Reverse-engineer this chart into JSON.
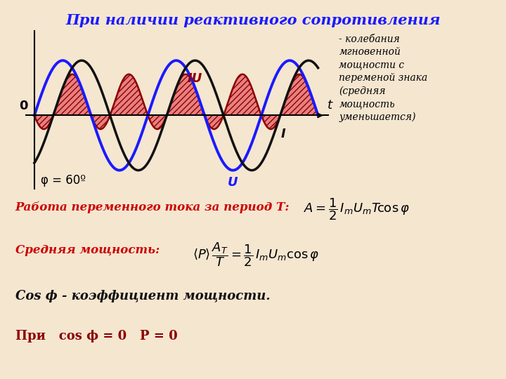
{
  "title": "При наличии реактивного сопротивления",
  "background_color": "#f5e6d0",
  "phi_deg": 60,
  "annotation_text": "- колебания\nмгновенной\nмощности с\nпеременой знака\n(средняя\nмощность\nуменьшается)",
  "label_U": "U",
  "label_I": "I",
  "label_IU": "IU",
  "label_phi": "φ = 60º",
  "label_t": "t",
  "label_0": "0",
  "formula1_label": "Работа переменного тока за период Т:",
  "formula1_math": "$A = \\dfrac{1}{2}\\,I_m U_m T\\cos\\varphi$",
  "formula2_label": "Средняя мощность:",
  "formula2_math": "$\\langle P \\rangle\\dfrac{A_T}{T} = \\dfrac{1}{2}\\,I_m U_m \\cos\\varphi$",
  "formula3": "Cos ϕ - коэффициент мощности.",
  "formula4": "При   cos ϕ = 0   P = 0",
  "color_U": "#1a1aff",
  "color_I": "#111111",
  "color_IU": "#8b0000",
  "color_fill_pos": "#e88080",
  "color_fill_neg": "#e88080",
  "color_title": "#1a1aff",
  "color_formula1": "#cc0000",
  "color_formula2": "#cc0000",
  "color_formula3": "#111111",
  "color_formula4": "#8b0000"
}
